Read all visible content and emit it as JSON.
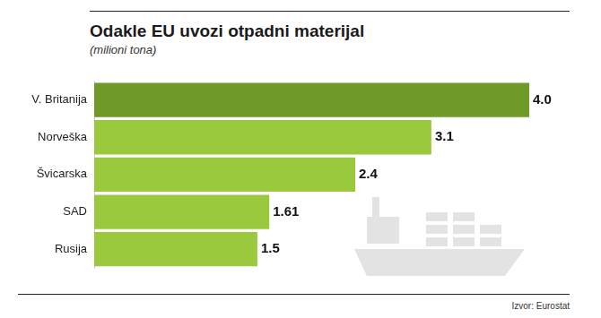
{
  "chart_data": {
    "type": "bar",
    "title": "Odakle EU uvozi otpadni materijal",
    "subtitle": "(milioni tona)",
    "source": "Izvor: Eurostat",
    "categories": [
      "V. Britanija",
      "Norveška",
      "Švicarska",
      "SAD",
      "Rusija"
    ],
    "values": [
      4.0,
      3.1,
      2.4,
      1.61,
      1.5
    ],
    "value_labels": [
      "4.0",
      "3.1",
      "2.4",
      "1.61",
      "1.5"
    ],
    "colors": [
      "#6f9a27",
      "#9bc93d",
      "#9bc93d",
      "#9bc93d",
      "#9bc93d"
    ],
    "orientation": "horizontal",
    "data_labels": true,
    "tick_labels": "y",
    "grid": false,
    "xlim": [
      0,
      4
    ]
  }
}
